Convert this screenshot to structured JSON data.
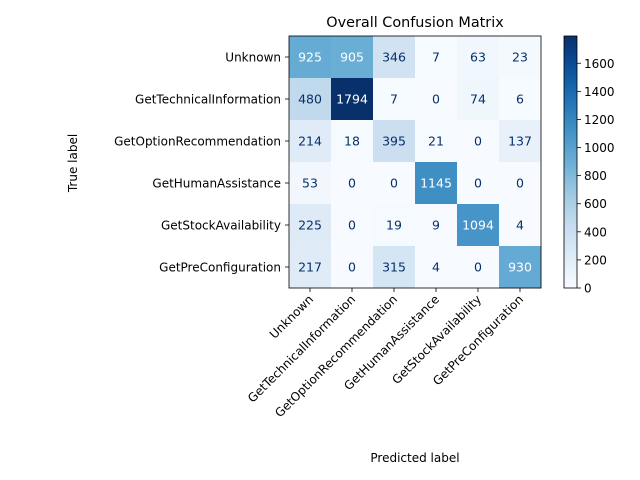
{
  "chart_data": {
    "type": "heatmap",
    "title": "Overall Confusion Matrix",
    "xlabel": "Predicted label",
    "ylabel": "True label",
    "categories": [
      "Unknown",
      "GetTechnicalInformation",
      "GetOptionRecommendation",
      "GetHumanAssistance",
      "GetStockAvailability",
      "GetPreConfiguration"
    ],
    "matrix": [
      [
        925,
        905,
        346,
        7,
        63,
        23
      ],
      [
        480,
        1794,
        7,
        0,
        74,
        6
      ],
      [
        214,
        18,
        395,
        21,
        0,
        137
      ],
      [
        53,
        0,
        0,
        1145,
        0,
        0
      ],
      [
        225,
        0,
        19,
        9,
        1094,
        4
      ],
      [
        217,
        0,
        315,
        4,
        0,
        930
      ]
    ],
    "colorbar": {
      "range": [
        0,
        1794
      ],
      "ticks": [
        0,
        200,
        400,
        600,
        800,
        1000,
        1200,
        1400,
        1600
      ]
    },
    "colormap": "Blues"
  }
}
